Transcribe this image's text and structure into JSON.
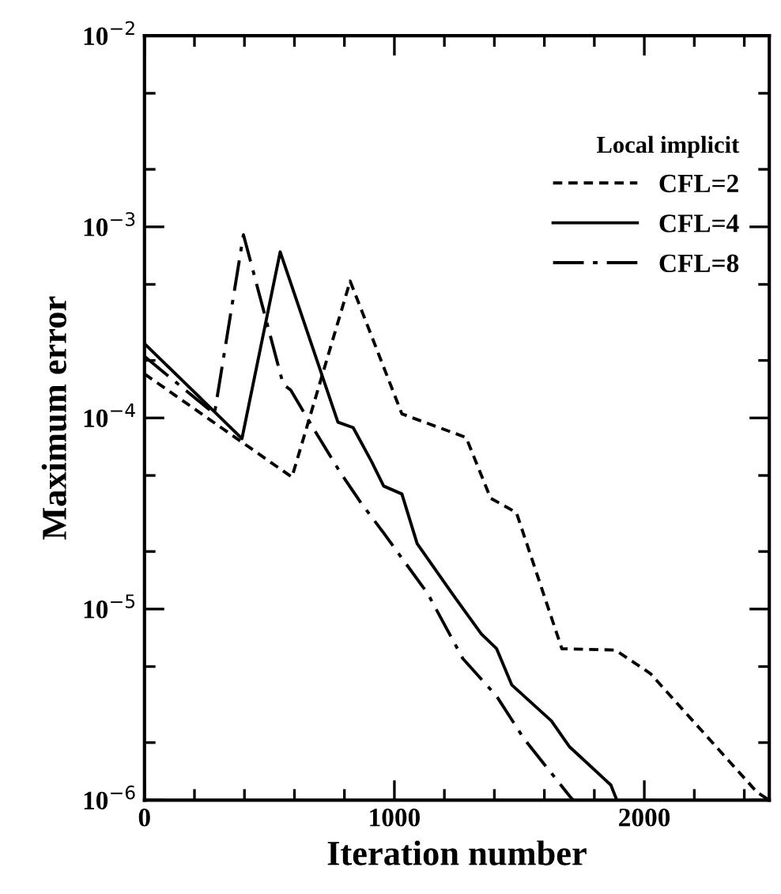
{
  "chart_data": {
    "type": "line",
    "xlabel": "Iteration number",
    "ylabel": "Maximum error",
    "legend_title": "Local implicit",
    "log": "y",
    "xlim": [
      0,
      2500
    ],
    "ylim": [
      1e-06,
      0.01
    ],
    "xticks": [
      0,
      1000,
      2000
    ],
    "yticks": [
      {
        "value": 1e-06,
        "label": "10$^{−6}$"
      },
      {
        "value": 1e-05,
        "label": "10$^{−5}$"
      },
      {
        "value": 0.0001,
        "label": "10$^{−4}$"
      },
      {
        "value": 0.001,
        "label": "10$^{−3}$"
      },
      {
        "value": 0.01,
        "label": "10$^{−2}$"
      }
    ],
    "grid": false,
    "legend": "top right",
    "marker": "none",
    "series": [
      {
        "name": "CFL=2",
        "color": "#000000",
        "line_style": "dashed",
        "x": [
          0,
          590,
          823,
          1030,
          1287,
          1385,
          1488,
          1670,
          1884,
          2024,
          2451,
          2500
        ],
        "values": [
          0.00017,
          4.9e-05,
          0.00052,
          0.000105,
          7.9e-05,
          3.8e-05,
          3.2e-05,
          6.2e-06,
          6.1e-06,
          4.6e-06,
          1.1e-06,
          1e-06
        ]
      },
      {
        "name": "CFL=4",
        "color": "#000000",
        "line_style": "solid",
        "x": [
          0,
          390,
          543,
          774,
          835,
          909,
          957,
          1030,
          1091,
          1232,
          1348,
          1409,
          1470,
          1628,
          1701,
          1866,
          1890
        ],
        "values": [
          0.000245,
          7.8e-05,
          0.00074,
          9.5e-05,
          8.9e-05,
          5.9e-05,
          4.4e-05,
          4e-05,
          2.2e-05,
          1.2e-05,
          7.4e-06,
          6.2e-06,
          4e-06,
          2.6e-06,
          1.9e-06,
          1.2e-06,
          1e-06
        ]
      },
      {
        "name": "CFL=8",
        "color": "#000000",
        "line_style": "dashdot",
        "x": [
          0,
          280,
          396,
          555,
          585,
          683,
          787,
          866,
          957,
          1134,
          1274,
          1409,
          1518,
          1701,
          1715
        ],
        "values": [
          0.00021,
          0.000105,
          0.00091,
          0.00015,
          0.00014,
          8.5e-05,
          5.1e-05,
          3.6e-05,
          2.5e-05,
          1.2e-05,
          5.5e-06,
          3.5e-06,
          2.1e-06,
          1.05e-06,
          1e-06
        ]
      }
    ]
  }
}
